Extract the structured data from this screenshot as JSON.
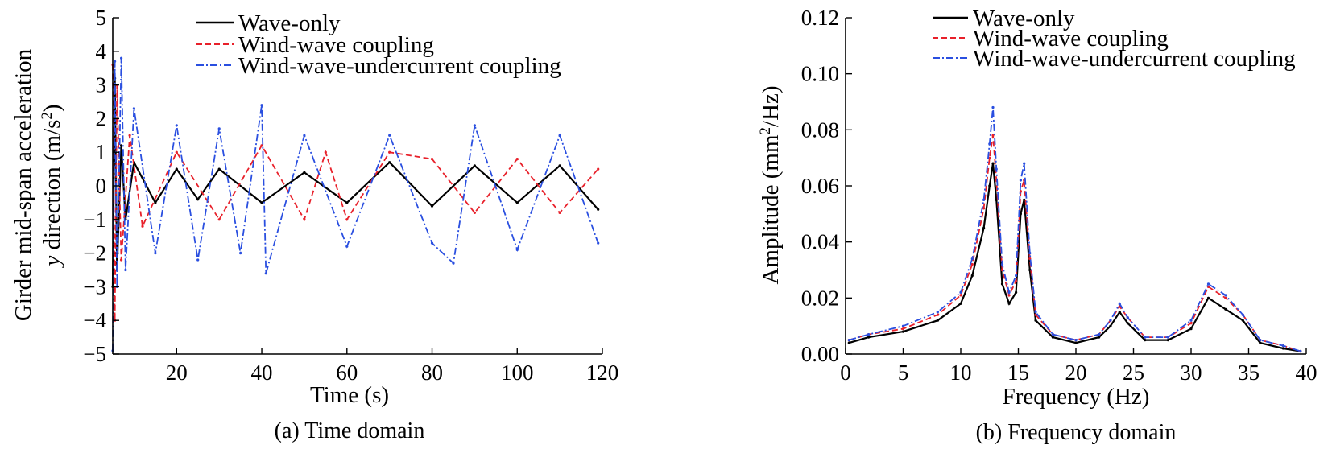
{
  "chart_data": [
    {
      "type": "line",
      "caption": "(a) Time domain",
      "xlabel": "Time (s)",
      "ylabel_line1": "Girder mid-span acceleration",
      "ylabel_line2_italic": "y",
      "ylabel_line2_rest": " direction (m/s",
      "ylabel_sup": "2",
      "ylabel_close": ")",
      "xlim": [
        5,
        120
      ],
      "ylim": [
        -5,
        5
      ],
      "xticks": [
        20,
        40,
        60,
        80,
        100,
        120
      ],
      "yticks": [
        -5,
        -4,
        -3,
        -2,
        -1,
        0,
        1,
        2,
        3,
        4,
        5
      ],
      "yticklabels": [
        "−5",
        "−4",
        "−3",
        "−2",
        "−1",
        "0",
        "1",
        "2",
        "3",
        "4",
        "5"
      ],
      "legend_position": "top-center",
      "series": [
        {
          "name": "Wave-only",
          "color": "#000000",
          "style": "solid",
          "x": [
            5,
            5.5,
            6,
            7,
            8,
            10,
            15,
            20,
            25,
            30,
            40,
            50,
            60,
            70,
            80,
            90,
            100,
            110,
            119
          ],
          "y": [
            -3.0,
            3.2,
            -2.5,
            1.2,
            -1.0,
            0.7,
            -0.5,
            0.5,
            -0.4,
            0.5,
            -0.5,
            0.4,
            -0.5,
            0.7,
            -0.6,
            0.6,
            -0.5,
            0.6,
            -0.7
          ]
        },
        {
          "name": "Wind-wave coupling",
          "color": "#e8202a",
          "style": "dashed",
          "x": [
            5,
            5.5,
            6,
            7,
            9,
            12,
            20,
            30,
            40,
            50,
            55,
            60,
            70,
            80,
            90,
            100,
            110,
            119
          ],
          "y": [
            3.6,
            -4.0,
            3.0,
            -2.2,
            1.5,
            -1.2,
            1.0,
            -1.0,
            1.2,
            -1.0,
            1.0,
            -1.0,
            1.0,
            0.8,
            -0.8,
            0.8,
            -0.8,
            0.5
          ]
        },
        {
          "name": "Wind-wave-undercurrent coupling",
          "color": "#2a4fe0",
          "style": "dashdot",
          "x": [
            5,
            5.5,
            6,
            7,
            8,
            10,
            15,
            20,
            25,
            30,
            35,
            40,
            41,
            50,
            60,
            70,
            80,
            85,
            90,
            100,
            110,
            119
          ],
          "y": [
            -4.9,
            3.7,
            -3.0,
            3.8,
            -2.5,
            2.3,
            -2.0,
            1.8,
            -2.2,
            1.7,
            -2.0,
            2.4,
            -2.6,
            1.5,
            -1.8,
            1.5,
            -1.7,
            -2.3,
            1.8,
            -1.9,
            1.5,
            -1.7
          ]
        }
      ]
    },
    {
      "type": "line",
      "caption": "(b) Frequency domain",
      "xlabel": "Frequency (Hz)",
      "ylabel_main": "Amplitude (mm",
      "ylabel_sup": "2",
      "ylabel_rest": "/Hz)",
      "xlim": [
        0,
        40
      ],
      "ylim": [
        0,
        0.12
      ],
      "xticks": [
        0,
        5,
        10,
        15,
        20,
        25,
        30,
        35,
        40
      ],
      "xticklabels": [
        "0",
        "5",
        "10",
        "15",
        "20",
        "25",
        "30",
        "35",
        "40"
      ],
      "yticks": [
        0,
        0.02,
        0.04,
        0.06,
        0.08,
        0.1,
        0.12
      ],
      "yticklabels": [
        "0.00",
        "0.02",
        "0.04",
        "0.06",
        "0.08",
        "0.10",
        "0.12"
      ],
      "legend_position": "top-right",
      "series": [
        {
          "name": "Wave-only",
          "color": "#000000",
          "style": "solid",
          "x": [
            0.3,
            2,
            5,
            8,
            10,
            11,
            12,
            12.5,
            12.8,
            13.1,
            13.6,
            14.2,
            14.8,
            15.2,
            15.5,
            16,
            16.5,
            18,
            20,
            22,
            23,
            23.8,
            24.5,
            26,
            28,
            30,
            31.5,
            33,
            34.5,
            36,
            38,
            39.5
          ],
          "y": [
            0.004,
            0.006,
            0.008,
            0.012,
            0.018,
            0.028,
            0.045,
            0.06,
            0.068,
            0.055,
            0.025,
            0.018,
            0.022,
            0.05,
            0.055,
            0.03,
            0.012,
            0.006,
            0.004,
            0.006,
            0.01,
            0.015,
            0.011,
            0.005,
            0.005,
            0.009,
            0.02,
            0.016,
            0.012,
            0.004,
            0.002,
            0.001
          ]
        },
        {
          "name": "Wind-wave coupling",
          "color": "#e8202a",
          "style": "dashed",
          "x": [
            0.3,
            2,
            5,
            8,
            10,
            11,
            12,
            12.5,
            12.8,
            13.1,
            13.6,
            14.2,
            14.8,
            15.2,
            15.5,
            16,
            16.5,
            18,
            20,
            22,
            23,
            23.8,
            24.5,
            26,
            28,
            30,
            31.5,
            33,
            34.5,
            36,
            38,
            39.5
          ],
          "y": [
            0.005,
            0.007,
            0.009,
            0.014,
            0.021,
            0.032,
            0.052,
            0.07,
            0.078,
            0.062,
            0.03,
            0.021,
            0.026,
            0.058,
            0.062,
            0.034,
            0.014,
            0.007,
            0.005,
            0.007,
            0.012,
            0.017,
            0.013,
            0.006,
            0.006,
            0.011,
            0.024,
            0.02,
            0.014,
            0.005,
            0.003,
            0.001
          ]
        },
        {
          "name": "Wind-wave-undercurrent coupling",
          "color": "#2a4fe0",
          "style": "dashdot",
          "x": [
            0.3,
            2,
            5,
            8,
            10,
            11,
            12,
            12.5,
            12.8,
            13.1,
            13.6,
            14.2,
            14.8,
            15.2,
            15.5,
            16,
            16.5,
            18,
            20,
            22,
            23,
            23.8,
            24.5,
            26,
            28,
            30,
            31.5,
            33,
            34.5,
            36,
            38,
            39.5
          ],
          "y": [
            0.005,
            0.007,
            0.01,
            0.015,
            0.022,
            0.034,
            0.055,
            0.075,
            0.088,
            0.066,
            0.032,
            0.022,
            0.028,
            0.062,
            0.068,
            0.036,
            0.015,
            0.007,
            0.005,
            0.007,
            0.012,
            0.018,
            0.013,
            0.006,
            0.006,
            0.012,
            0.025,
            0.021,
            0.014,
            0.005,
            0.003,
            0.001
          ]
        }
      ]
    }
  ]
}
